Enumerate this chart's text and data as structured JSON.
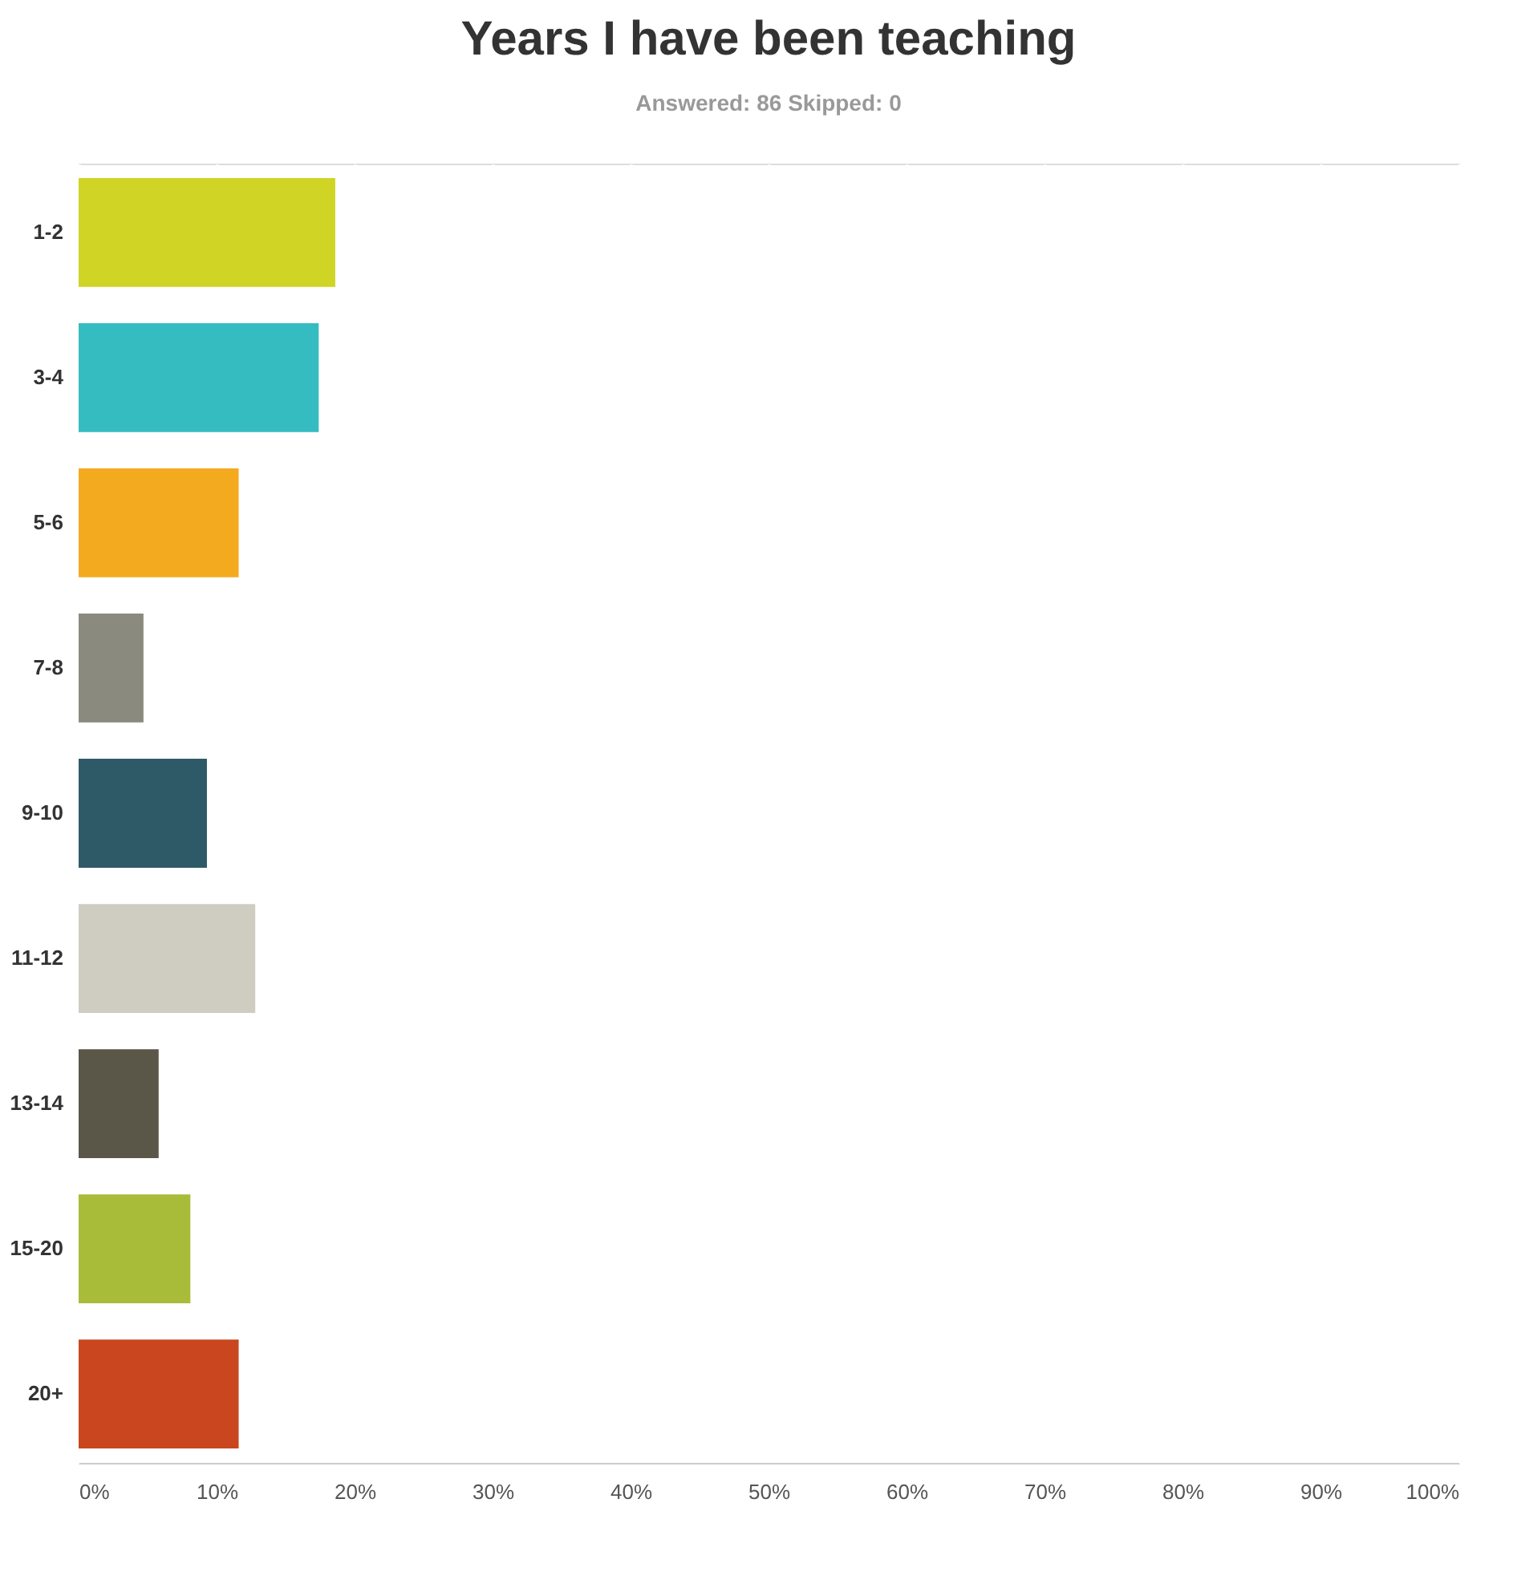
{
  "chart_data": {
    "type": "bar",
    "orientation": "horizontal",
    "title": "Years I have been teaching",
    "subtitle": "Answered: 86    Skipped: 0",
    "categories": [
      "1-2",
      "3-4",
      "5-6",
      "7-8",
      "9-10",
      "11-12",
      "13-14",
      "15-20",
      "20+"
    ],
    "values": [
      18.6,
      17.4,
      11.6,
      4.7,
      9.3,
      12.8,
      5.8,
      8.1,
      11.6
    ],
    "colors": [
      "#d0d424",
      "#35bcc0",
      "#f4aa1f",
      "#8a8a7e",
      "#2e5a68",
      "#cfcdc2",
      "#5a5749",
      "#a8bc3a",
      "#c9461f"
    ],
    "xlim": [
      0,
      100
    ],
    "xticks": [
      {
        "value": 0,
        "label": "0%"
      },
      {
        "value": 10,
        "label": "10%"
      },
      {
        "value": 20,
        "label": "20%"
      },
      {
        "value": 30,
        "label": "30%"
      },
      {
        "value": 40,
        "label": "40%"
      },
      {
        "value": 50,
        "label": "50%"
      },
      {
        "value": 60,
        "label": "60%"
      },
      {
        "value": 70,
        "label": "70%"
      },
      {
        "value": 80,
        "label": "80%"
      },
      {
        "value": 90,
        "label": "90%"
      },
      {
        "value": 100,
        "label": "100%"
      }
    ],
    "grid": "x"
  }
}
